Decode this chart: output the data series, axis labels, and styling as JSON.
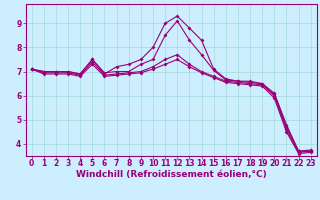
{
  "background_color": "#cceeff",
  "grid_color": "#aadddd",
  "line_color": "#990077",
  "marker_color": "#990077",
  "xlabel": "Windchill (Refroidissement éolien,°C)",
  "xlabel_fontsize": 6.5,
  "tick_fontsize": 5.5,
  "xlim": [
    -0.5,
    23.5
  ],
  "ylim": [
    3.5,
    9.8
  ],
  "yticks": [
    4,
    5,
    6,
    7,
    8,
    9
  ],
  "xticks": [
    0,
    1,
    2,
    3,
    4,
    5,
    6,
    7,
    8,
    9,
    10,
    11,
    12,
    13,
    14,
    15,
    16,
    17,
    18,
    19,
    20,
    21,
    22,
    23
  ],
  "series": [
    [
      7.1,
      7.0,
      7.0,
      7.0,
      6.9,
      7.5,
      6.9,
      7.2,
      7.3,
      7.5,
      8.0,
      9.0,
      9.3,
      8.8,
      8.3,
      7.1,
      6.7,
      6.6,
      6.6,
      6.5,
      6.1,
      4.8,
      3.7,
      3.7
    ],
    [
      7.1,
      7.0,
      7.0,
      7.0,
      6.9,
      7.5,
      6.95,
      7.0,
      7.0,
      7.3,
      7.5,
      8.5,
      9.1,
      8.3,
      7.7,
      7.05,
      6.65,
      6.6,
      6.55,
      6.5,
      6.05,
      4.7,
      3.7,
      3.75
    ],
    [
      7.1,
      6.95,
      6.95,
      6.95,
      6.85,
      7.4,
      6.85,
      6.9,
      6.95,
      7.0,
      7.2,
      7.5,
      7.7,
      7.3,
      7.0,
      6.8,
      6.6,
      6.55,
      6.5,
      6.45,
      6.0,
      4.6,
      3.65,
      3.7
    ],
    [
      7.1,
      6.9,
      6.9,
      6.9,
      6.8,
      7.3,
      6.8,
      6.85,
      6.9,
      6.95,
      7.1,
      7.3,
      7.5,
      7.2,
      6.95,
      6.75,
      6.55,
      6.5,
      6.45,
      6.4,
      5.9,
      4.5,
      3.6,
      3.65
    ]
  ]
}
